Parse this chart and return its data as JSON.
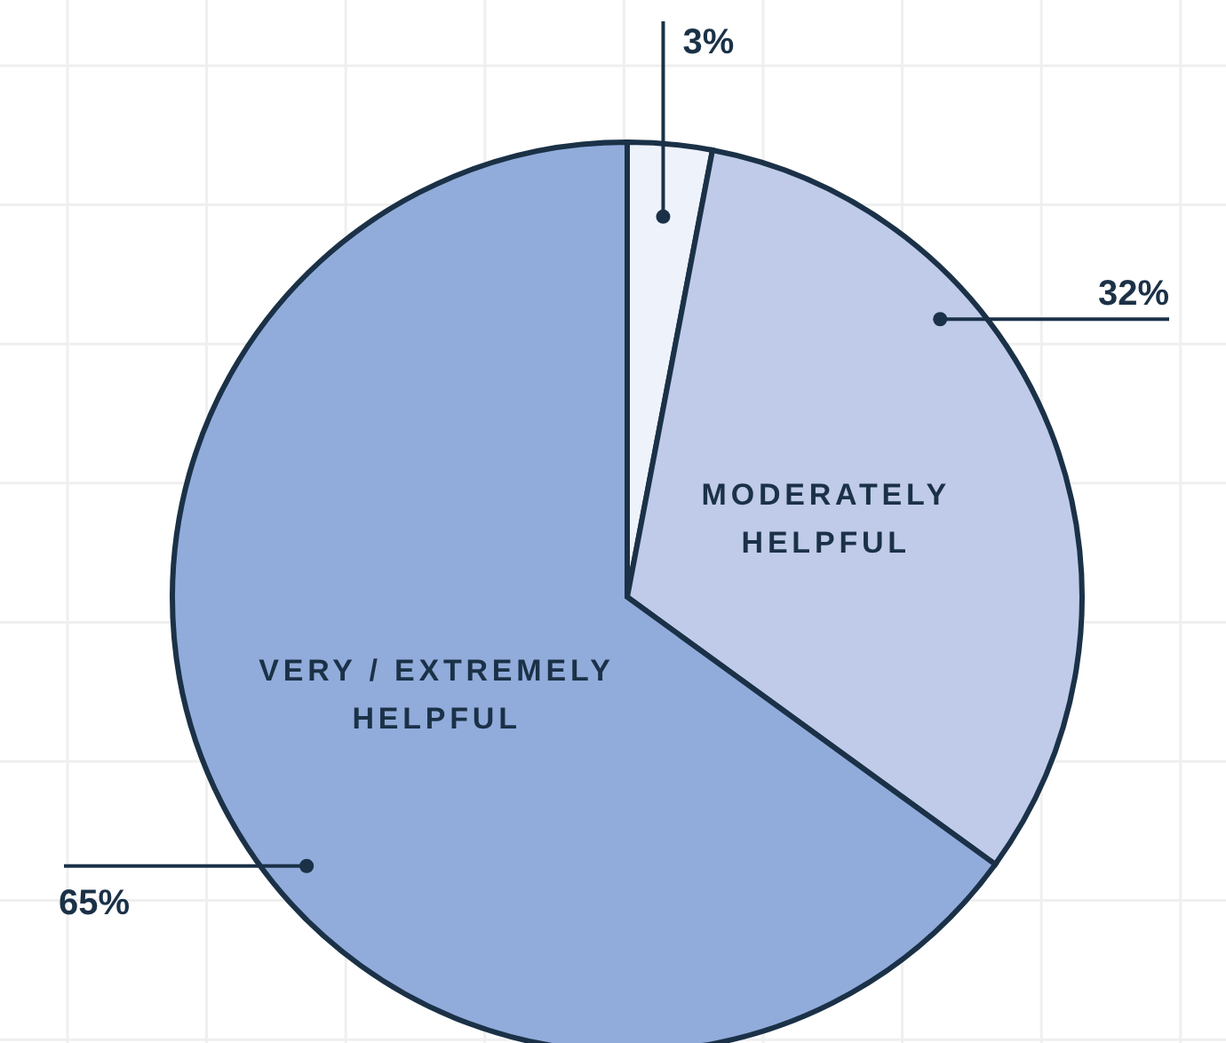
{
  "chart_data": {
    "type": "pie",
    "categories": [
      null,
      "MODERATELY HELPFUL",
      "VERY / EXTREMELY HELPFUL"
    ],
    "values": [
      3,
      32,
      65
    ],
    "colors": [
      "#eef2fb",
      "#bfcbe9",
      "#91acdb"
    ],
    "value_labels": [
      "3%",
      "32%",
      "65%"
    ],
    "grid": true
  }
}
